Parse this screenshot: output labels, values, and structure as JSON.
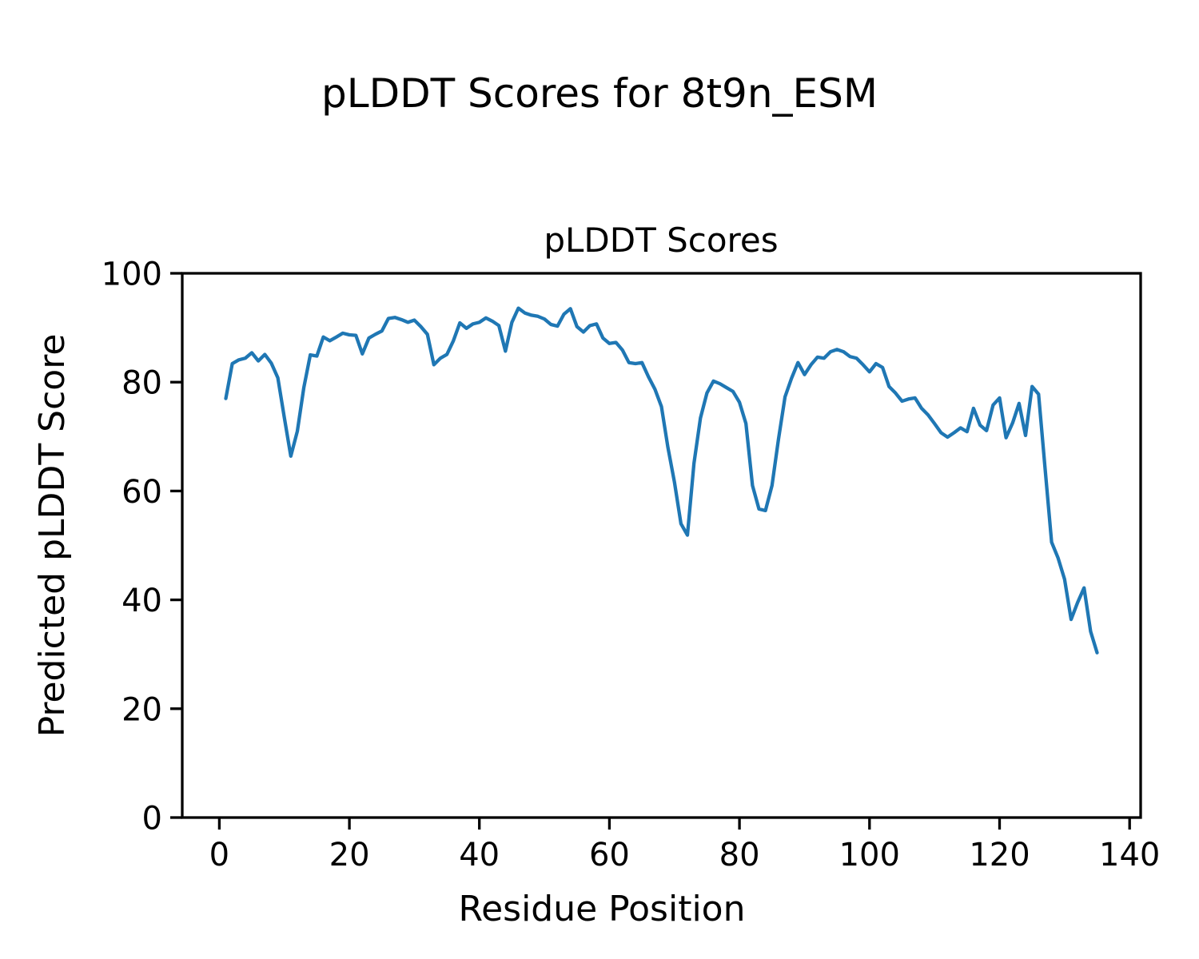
{
  "figure": {
    "suptitle": "pLDDT Scores for 8t9n_ESM",
    "background_color": "#ffffff",
    "text_color": "#000000"
  },
  "chart_data": {
    "type": "line",
    "title": "pLDDT Scores",
    "xlabel": "Residue Position",
    "ylabel": "Predicted pLDDT Score",
    "xlim": [
      -5.7,
      141.7
    ],
    "ylim": [
      0,
      100
    ],
    "xticks": [
      0,
      20,
      40,
      60,
      80,
      100,
      120,
      140
    ],
    "yticks": [
      0,
      20,
      40,
      60,
      80,
      100
    ],
    "grid": false,
    "legend": "none",
    "series": [
      {
        "name": "pLDDT",
        "color": "#1f77b4",
        "x": [
          1,
          2,
          3,
          4,
          5,
          6,
          7,
          8,
          9,
          10,
          11,
          12,
          13,
          14,
          15,
          16,
          17,
          18,
          19,
          20,
          21,
          22,
          23,
          24,
          25,
          26,
          27,
          28,
          29,
          30,
          31,
          32,
          33,
          34,
          35,
          36,
          37,
          38,
          39,
          40,
          41,
          42,
          43,
          44,
          45,
          46,
          47,
          48,
          49,
          50,
          51,
          52,
          53,
          54,
          55,
          56,
          57,
          58,
          59,
          60,
          61,
          62,
          63,
          64,
          65,
          66,
          67,
          68,
          69,
          70,
          71,
          72,
          73,
          74,
          75,
          76,
          77,
          78,
          79,
          80,
          81,
          82,
          83,
          84,
          85,
          86,
          87,
          88,
          89,
          90,
          91,
          92,
          93,
          94,
          95,
          96,
          97,
          98,
          99,
          100,
          101,
          102,
          103,
          104,
          105,
          106,
          107,
          108,
          109,
          110,
          111,
          112,
          113,
          114,
          115,
          116,
          117,
          118,
          119,
          120,
          121,
          122,
          123,
          124,
          125,
          126,
          127,
          128,
          129,
          130,
          131,
          132,
          133,
          134,
          135
        ],
        "values": [
          77.0,
          83.4,
          84.1,
          84.4,
          85.4,
          83.9,
          85.1,
          83.5,
          80.8,
          73.5,
          66.4,
          71.0,
          79.0,
          85.0,
          84.8,
          88.3,
          87.6,
          88.3,
          89.0,
          88.7,
          88.6,
          85.2,
          88.1,
          88.8,
          89.4,
          91.7,
          91.9,
          91.5,
          91.0,
          91.4,
          90.2,
          88.8,
          83.2,
          84.4,
          85.1,
          87.6,
          90.9,
          89.9,
          90.7,
          91.0,
          91.8,
          91.2,
          90.4,
          85.7,
          91.0,
          93.6,
          92.7,
          92.3,
          92.1,
          91.6,
          90.6,
          90.3,
          92.5,
          93.5,
          90.2,
          89.2,
          90.4,
          90.7,
          88.1,
          87.1,
          87.3,
          85.9,
          83.6,
          83.4,
          83.6,
          81.0,
          78.7,
          75.5,
          68.0,
          61.6,
          54.0,
          51.9,
          65.1,
          73.4,
          78.0,
          80.2,
          79.7,
          79.0,
          78.3,
          76.3,
          72.4,
          61.0,
          56.7,
          56.4,
          61.0,
          69.5,
          77.3,
          80.7,
          83.6,
          81.4,
          83.2,
          84.6,
          84.4,
          85.6,
          86.0,
          85.6,
          84.7,
          84.4,
          83.2,
          81.9,
          83.4,
          82.7,
          79.2,
          78.0,
          76.5,
          76.9,
          77.1,
          75.2,
          74.0,
          72.4,
          70.7,
          69.9,
          70.7,
          71.6,
          70.9,
          75.2,
          72.1,
          71.1,
          75.8,
          77.1,
          69.8,
          72.5,
          76.1,
          70.2,
          79.2,
          77.8,
          64.2,
          50.6,
          47.7,
          43.8,
          36.4,
          39.5,
          42.2,
          34.2,
          30.3
        ]
      }
    ]
  }
}
